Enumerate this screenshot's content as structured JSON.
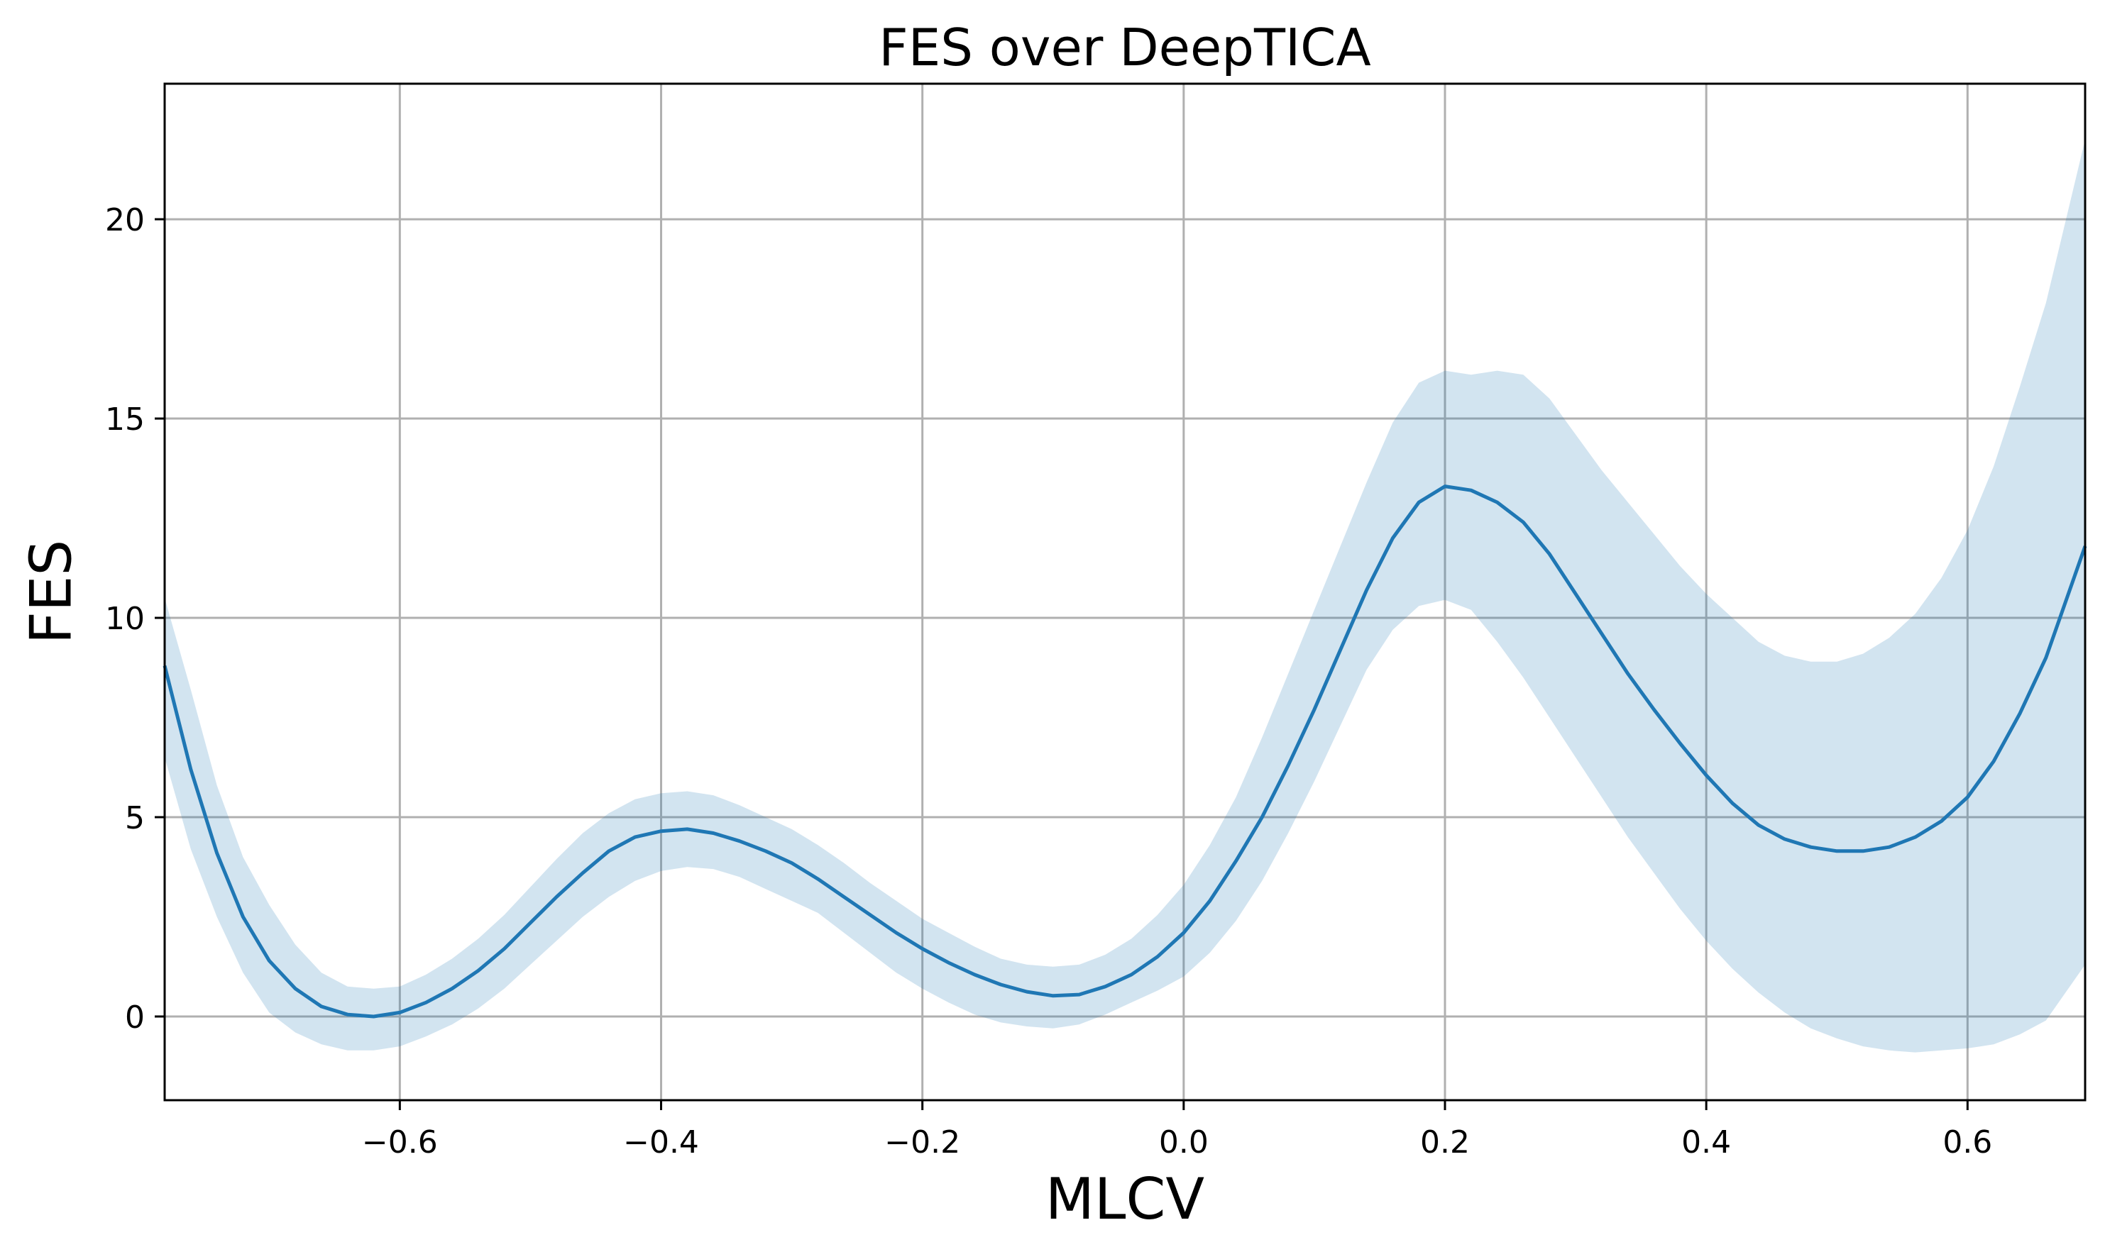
{
  "chart_data": {
    "type": "line",
    "title": "FES over DeepTICA",
    "xlabel": "MLCV",
    "ylabel": "FES",
    "xlim": [
      -0.78,
      0.69
    ],
    "ylim": [
      -2.1,
      23.4
    ],
    "grid": true,
    "x_ticks": [
      -0.6,
      -0.4,
      -0.2,
      0.0,
      0.2,
      0.4,
      0.6
    ],
    "x_tick_labels": [
      "−0.6",
      "−0.4",
      "−0.2",
      "0.0",
      "0.2",
      "0.4",
      "0.6"
    ],
    "y_ticks": [
      0,
      5,
      10,
      15,
      20
    ],
    "y_tick_labels": [
      "0",
      "5",
      "10",
      "15",
      "20"
    ],
    "colors": {
      "line": "#1f77b4",
      "band": "#1f77b4",
      "band_opacity": 0.2
    },
    "series": [
      {
        "x": [
          -0.78,
          -0.76,
          -0.74,
          -0.72,
          -0.7,
          -0.68,
          -0.66,
          -0.64,
          -0.62,
          -0.6,
          -0.58,
          -0.56,
          -0.54,
          -0.52,
          -0.5,
          -0.48,
          -0.46,
          -0.44,
          -0.42,
          -0.4,
          -0.38,
          -0.36,
          -0.34,
          -0.32,
          -0.3,
          -0.28,
          -0.26,
          -0.24,
          -0.22,
          -0.2,
          -0.18,
          -0.16,
          -0.14,
          -0.12,
          -0.1,
          -0.08,
          -0.06,
          -0.04,
          -0.02,
          0.0,
          0.02,
          0.04,
          0.06,
          0.08,
          0.1,
          0.12,
          0.14,
          0.16,
          0.18,
          0.2,
          0.22,
          0.24,
          0.26,
          0.28,
          0.3,
          0.32,
          0.34,
          0.36,
          0.38,
          0.4,
          0.42,
          0.44,
          0.46,
          0.48,
          0.5,
          0.52,
          0.54,
          0.56,
          0.58,
          0.6,
          0.62,
          0.64,
          0.66,
          0.69
        ],
        "y": [
          8.8,
          6.2,
          4.1,
          2.5,
          1.4,
          0.7,
          0.25,
          0.05,
          0.0,
          0.1,
          0.35,
          0.7,
          1.15,
          1.7,
          2.35,
          3.0,
          3.6,
          4.15,
          4.5,
          4.65,
          4.7,
          4.6,
          4.4,
          4.15,
          3.85,
          3.45,
          3.0,
          2.55,
          2.1,
          1.7,
          1.35,
          1.05,
          0.8,
          0.62,
          0.52,
          0.55,
          0.75,
          1.05,
          1.5,
          2.1,
          2.9,
          3.9,
          5.0,
          6.3,
          7.7,
          9.2,
          10.7,
          12.0,
          12.9,
          13.3,
          13.2,
          12.9,
          12.4,
          11.6,
          10.6,
          9.6,
          8.6,
          7.7,
          6.85,
          6.05,
          5.35,
          4.8,
          4.45,
          4.25,
          4.15,
          4.15,
          4.25,
          4.5,
          4.9,
          5.5,
          6.4,
          7.6,
          9.0,
          11.8
        ],
        "lower": [
          6.5,
          4.2,
          2.5,
          1.1,
          0.1,
          -0.4,
          -0.7,
          -0.85,
          -0.85,
          -0.75,
          -0.5,
          -0.2,
          0.2,
          0.7,
          1.3,
          1.9,
          2.5,
          3.0,
          3.4,
          3.65,
          3.75,
          3.7,
          3.5,
          3.2,
          2.9,
          2.6,
          2.1,
          1.6,
          1.1,
          0.7,
          0.35,
          0.05,
          -0.15,
          -0.25,
          -0.3,
          -0.2,
          0.05,
          0.35,
          0.65,
          1.0,
          1.6,
          2.4,
          3.4,
          4.6,
          5.9,
          7.3,
          8.7,
          9.7,
          10.3,
          10.45,
          10.2,
          9.4,
          8.5,
          7.5,
          6.5,
          5.5,
          4.5,
          3.6,
          2.7,
          1.9,
          1.2,
          0.6,
          0.1,
          -0.3,
          -0.55,
          -0.75,
          -0.85,
          -0.9,
          -0.85,
          -0.8,
          -0.7,
          -0.45,
          -0.1,
          1.3
        ],
        "upper": [
          10.5,
          8.2,
          5.8,
          4.0,
          2.8,
          1.8,
          1.1,
          0.75,
          0.7,
          0.75,
          1.05,
          1.45,
          1.95,
          2.55,
          3.25,
          3.95,
          4.6,
          5.1,
          5.45,
          5.6,
          5.65,
          5.55,
          5.3,
          5.0,
          4.7,
          4.3,
          3.85,
          3.35,
          2.9,
          2.45,
          2.1,
          1.75,
          1.45,
          1.3,
          1.25,
          1.3,
          1.55,
          1.95,
          2.55,
          3.3,
          4.3,
          5.5,
          7.0,
          8.6,
          10.2,
          11.8,
          13.4,
          14.9,
          15.9,
          16.2,
          16.1,
          16.2,
          16.1,
          15.5,
          14.6,
          13.7,
          12.9,
          12.1,
          11.3,
          10.6,
          10.0,
          9.4,
          9.05,
          8.9,
          8.9,
          9.1,
          9.5,
          10.1,
          11.0,
          12.2,
          13.8,
          15.8,
          17.9,
          22.0
        ]
      }
    ]
  }
}
